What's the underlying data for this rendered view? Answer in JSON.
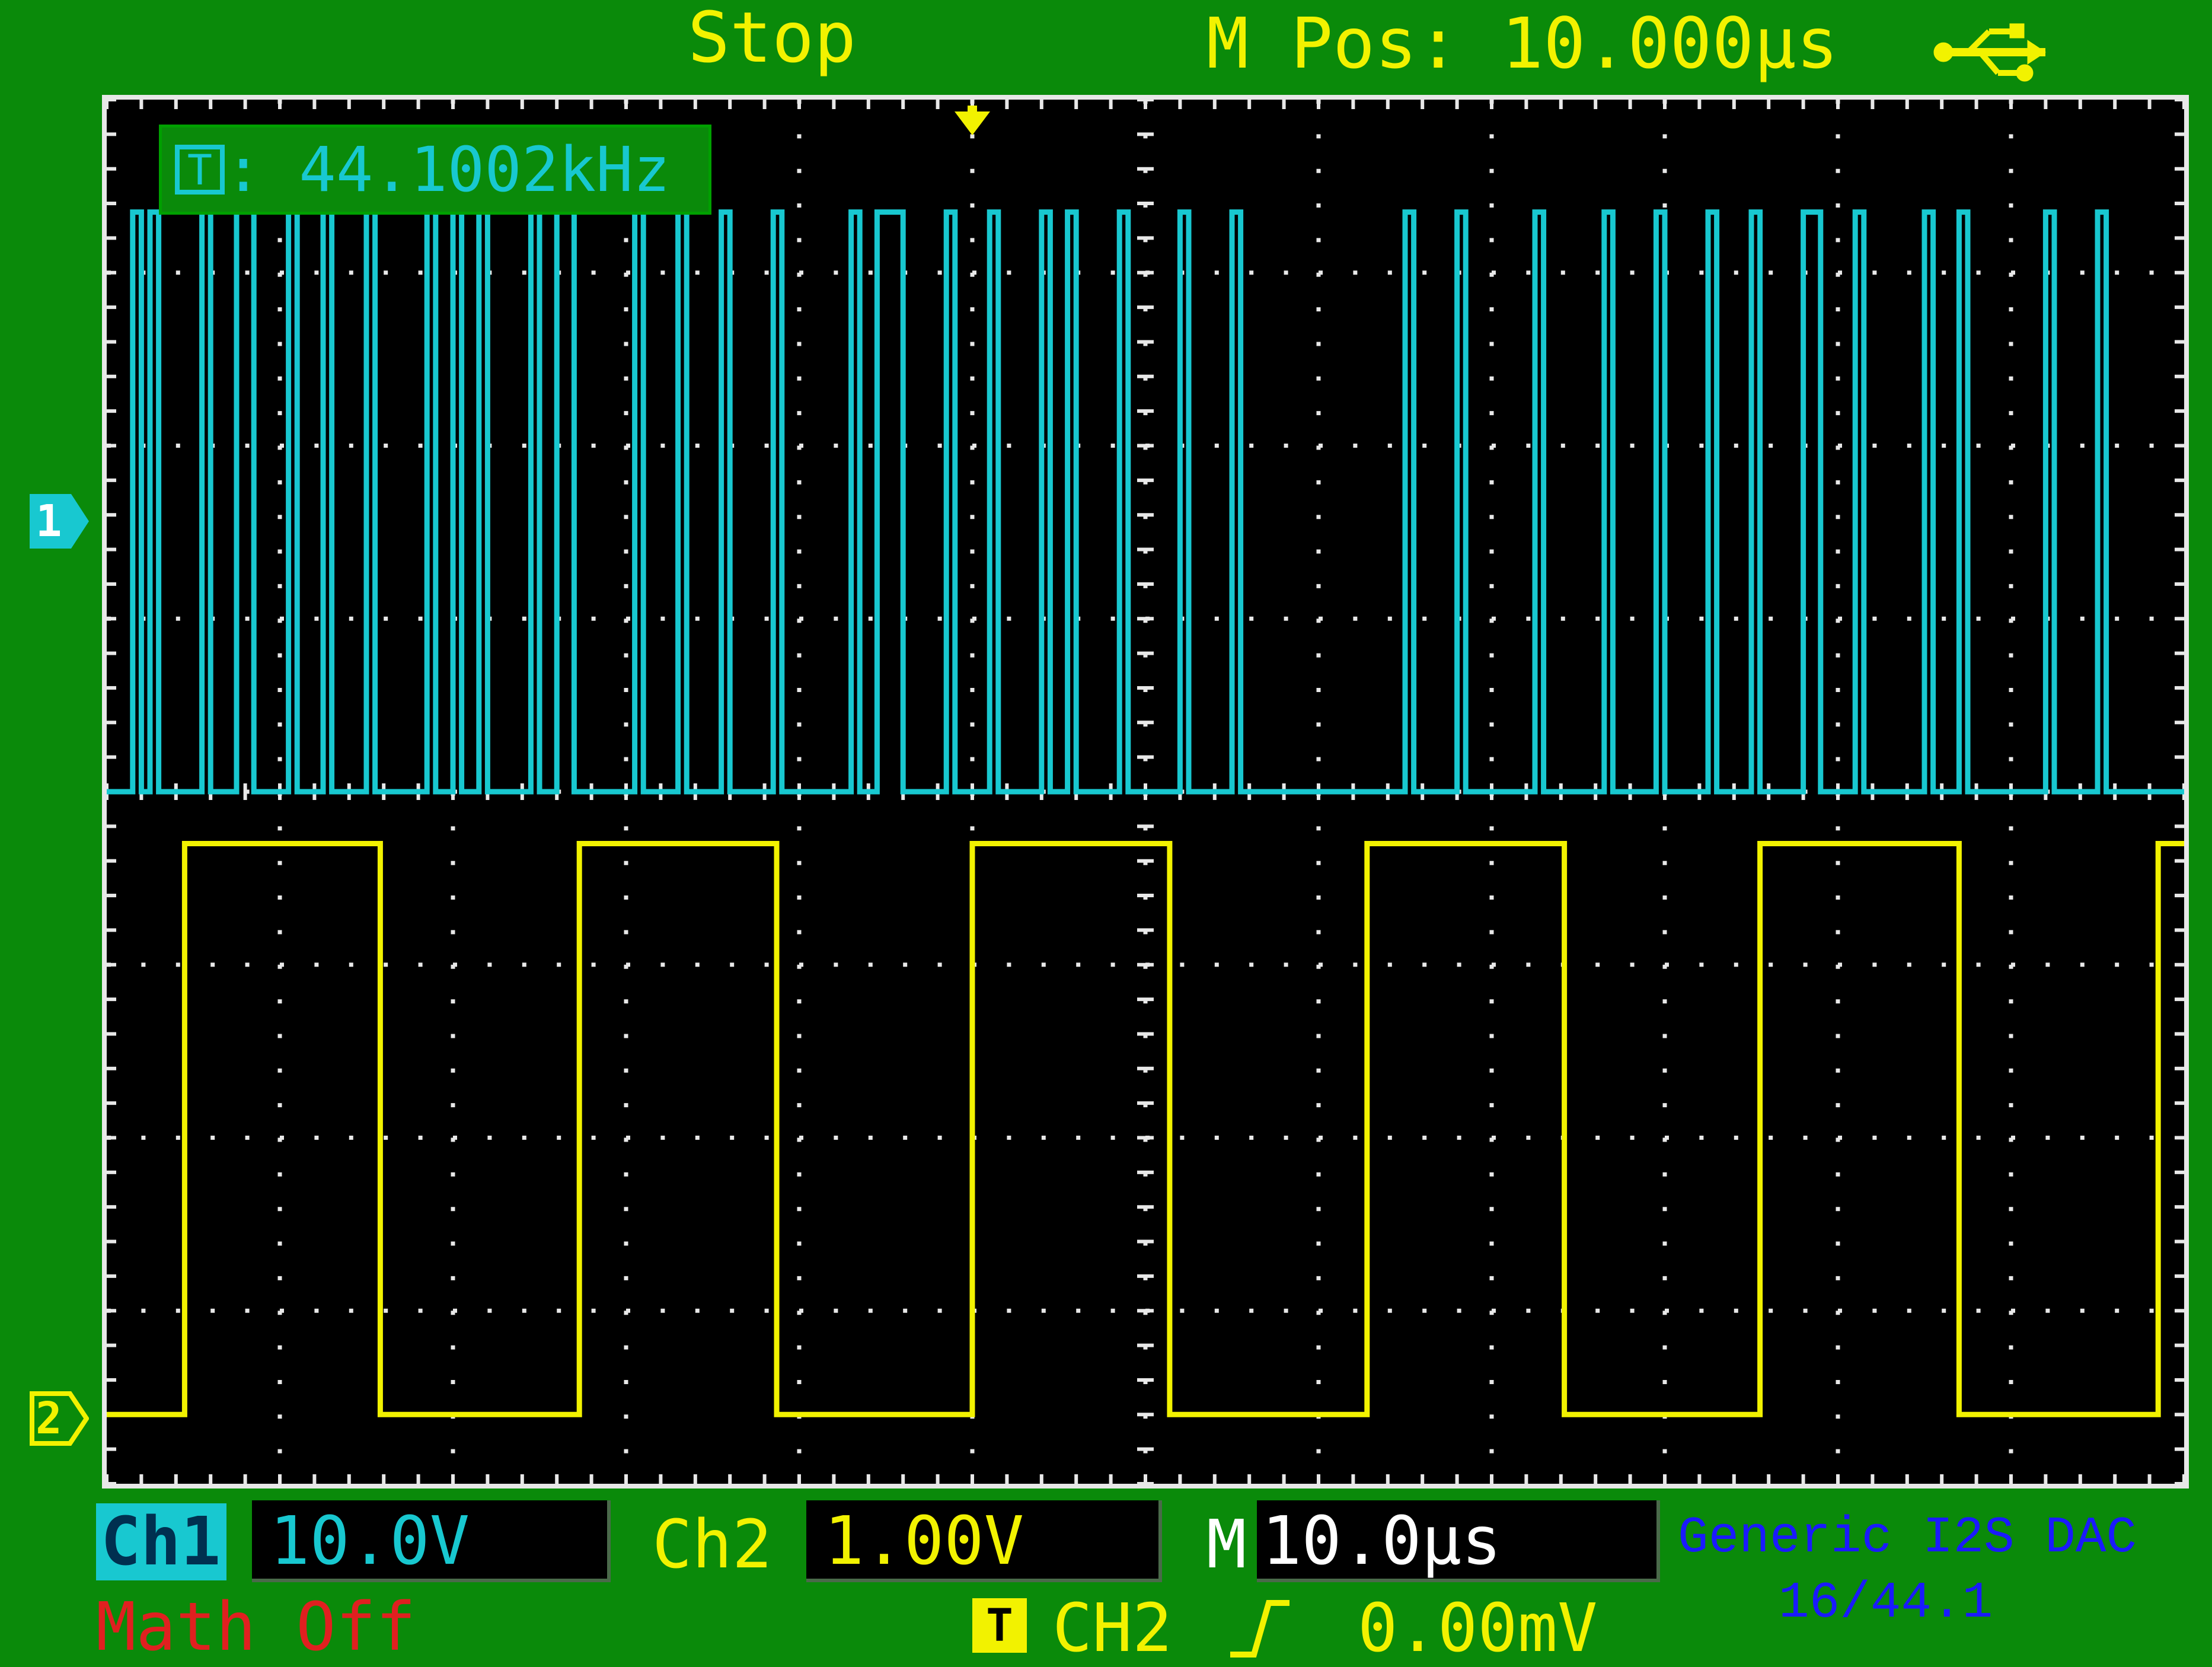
{
  "header": {
    "status": "Stop",
    "horizontal_position": "M Pos: 10.000µs",
    "usb_icon": "usb-icon"
  },
  "measurement": {
    "trigger_icon_letter": "T",
    "frequency": ":  44.1002kHz"
  },
  "markers": {
    "ch1": "1",
    "ch2": "2"
  },
  "footer": {
    "ch1_label": "Ch1",
    "ch1_scale": "10.0V",
    "ch2_label": "Ch2",
    "ch2_scale": "1.00V",
    "timebase_label": "M",
    "timebase": "10.0µs",
    "math_status": "Math Off",
    "trigger_icon_letter": "T",
    "trigger_source": "CH2",
    "trigger_slope_icon": "rising-edge-icon",
    "trigger_level": "0.00mV"
  },
  "device_label": {
    "line1": "Generic I2S DAC",
    "line2": "16/44.1"
  },
  "colors": {
    "ch1": "#18c8d0",
    "ch2": "#f2f200",
    "background": "#0a8a0a",
    "screen": "#000000",
    "math": "#e02020",
    "device_label": "#1a1aff"
  },
  "chart_data": {
    "type": "line",
    "x_divisions": 12,
    "y_divisions": 8,
    "x_unit": "µs/div",
    "series": [
      {
        "name": "Ch1",
        "color": "#18c8d0",
        "levels": [
          "low",
          "high"
        ],
        "edges_div": [
          0.15,
          0.2,
          0.25,
          0.3,
          0.55,
          0.6,
          0.75,
          0.85,
          1.05,
          1.1,
          1.25,
          1.3,
          1.5,
          1.55,
          1.85,
          1.9,
          2.0,
          2.05,
          2.15,
          2.2,
          2.45,
          2.5,
          2.6,
          2.7,
          3.05,
          3.1,
          3.3,
          3.35,
          3.55,
          3.6,
          3.85,
          3.9,
          4.3,
          4.35,
          4.45,
          4.6,
          4.85,
          4.9,
          5.1,
          5.15,
          5.4,
          5.45,
          5.55,
          5.6,
          5.85,
          5.9,
          6.2,
          6.25,
          6.5,
          6.55,
          7.5,
          7.55,
          7.8,
          7.85,
          8.25,
          8.3,
          8.65,
          8.7,
          8.95,
          9.0,
          9.25,
          9.3,
          9.5,
          9.55,
          9.8,
          9.9,
          10.1,
          10.15,
          10.5,
          10.55,
          10.7,
          10.75,
          11.2,
          11.25,
          11.5,
          11.55
        ]
      },
      {
        "name": "Ch2",
        "color": "#f2f200",
        "levels": [
          "low",
          "high"
        ],
        "edges_div": [
          0.45,
          1.58,
          2.73,
          3.87,
          5.0,
          6.14,
          7.28,
          8.42,
          9.55,
          10.7,
          11.85
        ]
      }
    ]
  }
}
